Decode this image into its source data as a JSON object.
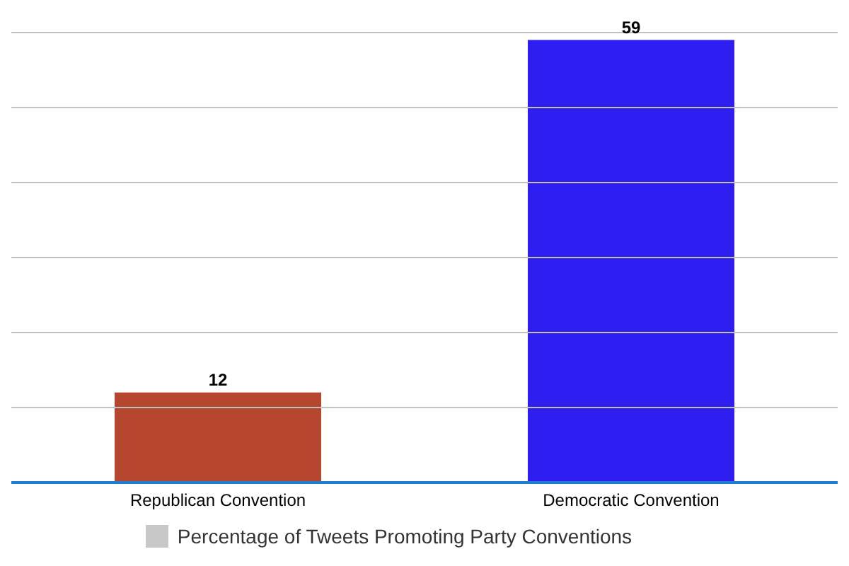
{
  "chart_data": {
    "type": "bar",
    "categories": [
      "Republican Convention",
      "Democratic Convention"
    ],
    "series": [
      {
        "name": "Percentage of Tweets Promoting Party Conventions",
        "color": "#c8c8c8",
        "colors": [
          "#b5472f",
          "#2e1ef0"
        ],
        "values": [
          12,
          59
        ]
      }
    ],
    "ylim": [
      0,
      60
    ],
    "yticks": [
      {
        "value": 0,
        "label": null
      },
      {
        "value": 10,
        "label": null
      },
      {
        "value": 20,
        "label": null
      },
      {
        "value": 30,
        "label": null
      },
      {
        "value": 40,
        "label": null
      },
      {
        "value": 50,
        "label": null
      },
      {
        "value": 60,
        "label": null
      }
    ],
    "tick_labels": "x",
    "grid": "y",
    "legend": "bottom",
    "data_labels": true
  }
}
